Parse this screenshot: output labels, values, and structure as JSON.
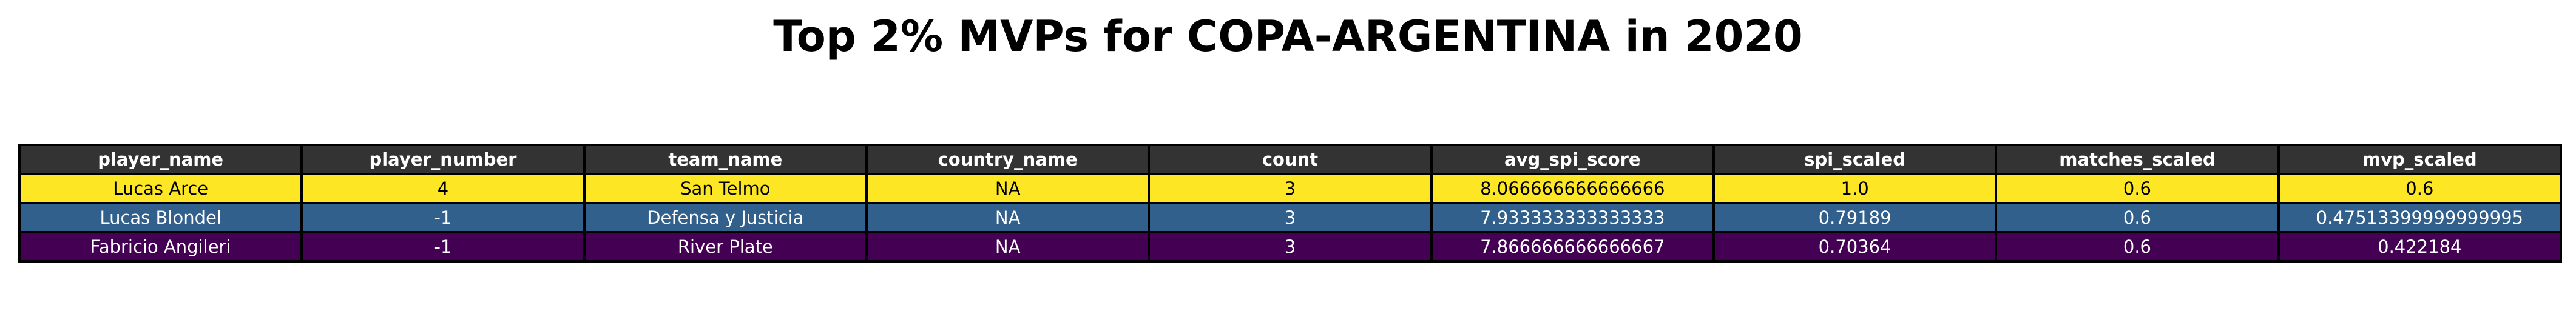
{
  "chart_data": {
    "type": "table",
    "title": "Top 2% MVPs for COPA-ARGENTINA in 2020",
    "columns": [
      "player_name",
      "player_number",
      "team_name",
      "country_name",
      "count",
      "avg_spi_score",
      "spi_scaled",
      "matches_scaled",
      "mvp_scaled"
    ],
    "rows": [
      {
        "cells": [
          "Lucas Arce",
          "4",
          "San Telmo",
          "NA",
          "3",
          "8.066666666666666",
          "1.0",
          "0.6",
          "0.6"
        ],
        "bg": "#fde725",
        "fg": "#000000"
      },
      {
        "cells": [
          "Lucas Blondel",
          "-1",
          "Defensa y Justicia",
          "NA",
          "3",
          "7.933333333333333",
          "0.79189",
          "0.6",
          "0.47513399999999995"
        ],
        "bg": "#31608d",
        "fg": "#ffffff"
      },
      {
        "cells": [
          "Fabricio Angileri",
          "-1",
          "River Plate",
          "NA",
          "3",
          "7.866666666666667",
          "0.70364",
          "0.6",
          "0.422184"
        ],
        "bg": "#440154",
        "fg": "#ffffff"
      }
    ],
    "header_color": "#333333",
    "header_text_color": "#ffffff"
  }
}
